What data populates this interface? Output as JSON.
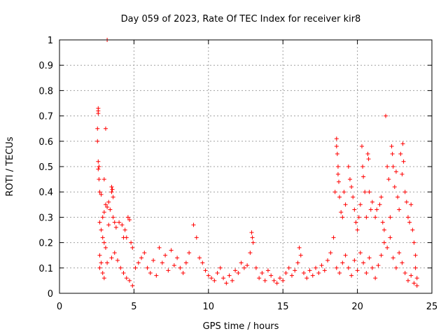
{
  "chart_data": {
    "type": "scatter",
    "title": "Day 059 of 2023, Rate Of TEC Index for receiver kir8",
    "xlabel": "GPS time / hours",
    "ylabel": "ROTI / TECUs",
    "xlim": [
      0,
      25
    ],
    "ylim": [
      0,
      1
    ],
    "xticks": [
      0,
      5,
      10,
      15,
      20,
      25
    ],
    "xtick_labels": [
      "0",
      "5",
      "10",
      "15",
      "20",
      "25"
    ],
    "yticks": [
      0,
      0.1,
      0.2,
      0.3,
      0.4,
      0.5,
      0.6,
      0.7,
      0.8,
      0.9,
      1
    ],
    "ytick_labels": [
      "0",
      "0.1",
      "0.2",
      "0.3",
      "0.4",
      "0.5",
      "0.6",
      "0.7",
      "0.8",
      "0.9",
      "1"
    ],
    "grid": true,
    "marker": "+",
    "color": "#ff0000",
    "series": [
      {
        "name": "ROTI",
        "points": [
          [
            2.6,
            0.73
          ],
          [
            2.6,
            0.72
          ],
          [
            2.6,
            0.71
          ],
          [
            2.55,
            0.65
          ],
          [
            2.55,
            0.6
          ],
          [
            3.1,
            0.65
          ],
          [
            2.6,
            0.52
          ],
          [
            2.65,
            0.5
          ],
          [
            2.6,
            0.49
          ],
          [
            2.65,
            0.45
          ],
          [
            3.0,
            0.45
          ],
          [
            2.7,
            0.4
          ],
          [
            2.8,
            0.39
          ],
          [
            3.1,
            0.35
          ],
          [
            3.2,
            0.34
          ],
          [
            3.0,
            0.32
          ],
          [
            2.9,
            0.3
          ],
          [
            3.2,
            1.0
          ],
          [
            3.5,
            0.42
          ],
          [
            3.55,
            0.41
          ],
          [
            3.5,
            0.4
          ],
          [
            3.6,
            0.38
          ],
          [
            3.4,
            0.33
          ],
          [
            3.3,
            0.36
          ],
          [
            2.7,
            0.28
          ],
          [
            2.8,
            0.25
          ],
          [
            2.9,
            0.22
          ],
          [
            3.0,
            0.2
          ],
          [
            3.1,
            0.18
          ],
          [
            3.3,
            0.27
          ],
          [
            3.6,
            0.3
          ],
          [
            3.7,
            0.28
          ],
          [
            3.8,
            0.26
          ],
          [
            4.0,
            0.28
          ],
          [
            4.2,
            0.27
          ],
          [
            4.4,
            0.25
          ],
          [
            4.5,
            0.22
          ],
          [
            4.6,
            0.3
          ],
          [
            4.7,
            0.29
          ],
          [
            4.8,
            0.2
          ],
          [
            4.9,
            0.18
          ],
          [
            4.3,
            0.22
          ],
          [
            2.7,
            0.15
          ],
          [
            2.8,
            0.12
          ],
          [
            2.7,
            0.1
          ],
          [
            2.9,
            0.08
          ],
          [
            3.0,
            0.06
          ],
          [
            3.2,
            0.12
          ],
          [
            3.5,
            0.14
          ],
          [
            3.7,
            0.16
          ],
          [
            3.9,
            0.13
          ],
          [
            4.1,
            0.1
          ],
          [
            4.3,
            0.08
          ],
          [
            4.5,
            0.06
          ],
          [
            4.7,
            0.05
          ],
          [
            4.9,
            0.03
          ],
          [
            5.1,
            0.1
          ],
          [
            5.3,
            0.12
          ],
          [
            5.5,
            0.14
          ],
          [
            5.7,
            0.16
          ],
          [
            5.9,
            0.1
          ],
          [
            6.1,
            0.08
          ],
          [
            6.3,
            0.13
          ],
          [
            6.5,
            0.07
          ],
          [
            6.7,
            0.18
          ],
          [
            6.9,
            0.12
          ],
          [
            7.1,
            0.15
          ],
          [
            7.3,
            0.09
          ],
          [
            7.5,
            0.17
          ],
          [
            7.7,
            0.11
          ],
          [
            7.9,
            0.14
          ],
          [
            8.1,
            0.1
          ],
          [
            8.3,
            0.08
          ],
          [
            8.5,
            0.12
          ],
          [
            8.7,
            0.16
          ],
          [
            9.0,
            0.27
          ],
          [
            9.2,
            0.22
          ],
          [
            9.4,
            0.14
          ],
          [
            9.6,
            0.12
          ],
          [
            9.8,
            0.09
          ],
          [
            10.0,
            0.07
          ],
          [
            10.2,
            0.06
          ],
          [
            10.4,
            0.05
          ],
          [
            10.6,
            0.08
          ],
          [
            10.8,
            0.1
          ],
          [
            11.0,
            0.06
          ],
          [
            11.2,
            0.04
          ],
          [
            11.4,
            0.07
          ],
          [
            11.6,
            0.05
          ],
          [
            11.8,
            0.09
          ],
          [
            12.0,
            0.08
          ],
          [
            12.2,
            0.12
          ],
          [
            12.4,
            0.1
          ],
          [
            12.6,
            0.11
          ],
          [
            12.8,
            0.16
          ],
          [
            12.9,
            0.24
          ],
          [
            12.95,
            0.22
          ],
          [
            13.0,
            0.2
          ],
          [
            13.2,
            0.1
          ],
          [
            13.4,
            0.06
          ],
          [
            13.6,
            0.08
          ],
          [
            13.8,
            0.05
          ],
          [
            14.0,
            0.09
          ],
          [
            14.2,
            0.07
          ],
          [
            14.4,
            0.05
          ],
          [
            14.6,
            0.04
          ],
          [
            14.8,
            0.06
          ],
          [
            15.0,
            0.05
          ],
          [
            15.2,
            0.08
          ],
          [
            15.4,
            0.1
          ],
          [
            15.6,
            0.07
          ],
          [
            15.8,
            0.09
          ],
          [
            16.0,
            0.12
          ],
          [
            16.1,
            0.18
          ],
          [
            16.2,
            0.15
          ],
          [
            16.4,
            0.08
          ],
          [
            16.6,
            0.06
          ],
          [
            16.8,
            0.09
          ],
          [
            17.0,
            0.07
          ],
          [
            17.2,
            0.1
          ],
          [
            17.4,
            0.08
          ],
          [
            17.6,
            0.11
          ],
          [
            17.8,
            0.09
          ],
          [
            18.0,
            0.13
          ],
          [
            18.2,
            0.16
          ],
          [
            18.4,
            0.22
          ],
          [
            18.5,
            0.4
          ],
          [
            18.6,
            0.61
          ],
          [
            18.6,
            0.58
          ],
          [
            18.65,
            0.55
          ],
          [
            18.7,
            0.5
          ],
          [
            18.7,
            0.47
          ],
          [
            18.75,
            0.44
          ],
          [
            18.8,
            0.38
          ],
          [
            18.9,
            0.32
          ],
          [
            19.0,
            0.3
          ],
          [
            19.1,
            0.4
          ],
          [
            19.2,
            0.35
          ],
          [
            19.4,
            0.5
          ],
          [
            19.5,
            0.45
          ],
          [
            19.6,
            0.42
          ],
          [
            19.7,
            0.38
          ],
          [
            19.8,
            0.33
          ],
          [
            19.9,
            0.28
          ],
          [
            20.0,
            0.25
          ],
          [
            20.1,
            0.3
          ],
          [
            20.2,
            0.35
          ],
          [
            20.3,
            0.58
          ],
          [
            20.35,
            0.5
          ],
          [
            20.4,
            0.46
          ],
          [
            20.5,
            0.4
          ],
          [
            20.6,
            0.3
          ],
          [
            20.7,
            0.55
          ],
          [
            20.75,
            0.53
          ],
          [
            20.8,
            0.4
          ],
          [
            20.9,
            0.33
          ],
          [
            21.0,
            0.36
          ],
          [
            21.2,
            0.3
          ],
          [
            21.3,
            0.33
          ],
          [
            21.5,
            0.35
          ],
          [
            21.6,
            0.38
          ],
          [
            21.7,
            0.28
          ],
          [
            21.8,
            0.25
          ],
          [
            21.9,
            0.7
          ],
          [
            22.0,
            0.5
          ],
          [
            22.1,
            0.45
          ],
          [
            22.2,
            0.3
          ],
          [
            22.3,
            0.58
          ],
          [
            22.35,
            0.55
          ],
          [
            22.4,
            0.5
          ],
          [
            22.5,
            0.42
          ],
          [
            22.6,
            0.48
          ],
          [
            22.7,
            0.38
          ],
          [
            22.8,
            0.33
          ],
          [
            22.9,
            0.55
          ],
          [
            23.0,
            0.47
          ],
          [
            23.05,
            0.59
          ],
          [
            23.1,
            0.52
          ],
          [
            23.2,
            0.4
          ],
          [
            23.3,
            0.36
          ],
          [
            23.4,
            0.3
          ],
          [
            23.5,
            0.28
          ],
          [
            23.6,
            0.35
          ],
          [
            23.7,
            0.25
          ],
          [
            23.8,
            0.2
          ],
          [
            23.9,
            0.15
          ],
          [
            18.6,
            0.1
          ],
          [
            18.8,
            0.08
          ],
          [
            19.0,
            0.12
          ],
          [
            19.2,
            0.15
          ],
          [
            19.4,
            0.1
          ],
          [
            19.6,
            0.07
          ],
          [
            19.8,
            0.13
          ],
          [
            20.0,
            0.09
          ],
          [
            20.2,
            0.16
          ],
          [
            20.4,
            0.12
          ],
          [
            20.6,
            0.08
          ],
          [
            20.8,
            0.14
          ],
          [
            21.0,
            0.1
          ],
          [
            21.2,
            0.06
          ],
          [
            21.4,
            0.11
          ],
          [
            21.6,
            0.15
          ],
          [
            21.8,
            0.2
          ],
          [
            22.0,
            0.18
          ],
          [
            22.2,
            0.22
          ],
          [
            22.4,
            0.14
          ],
          [
            22.6,
            0.1
          ],
          [
            22.8,
            0.16
          ],
          [
            23.0,
            0.12
          ],
          [
            23.2,
            0.08
          ],
          [
            23.4,
            0.05
          ],
          [
            23.6,
            0.07
          ],
          [
            23.8,
            0.04
          ],
          [
            24.0,
            0.03
          ],
          [
            23.9,
            0.1
          ],
          [
            24.0,
            0.06
          ]
        ]
      }
    ]
  }
}
